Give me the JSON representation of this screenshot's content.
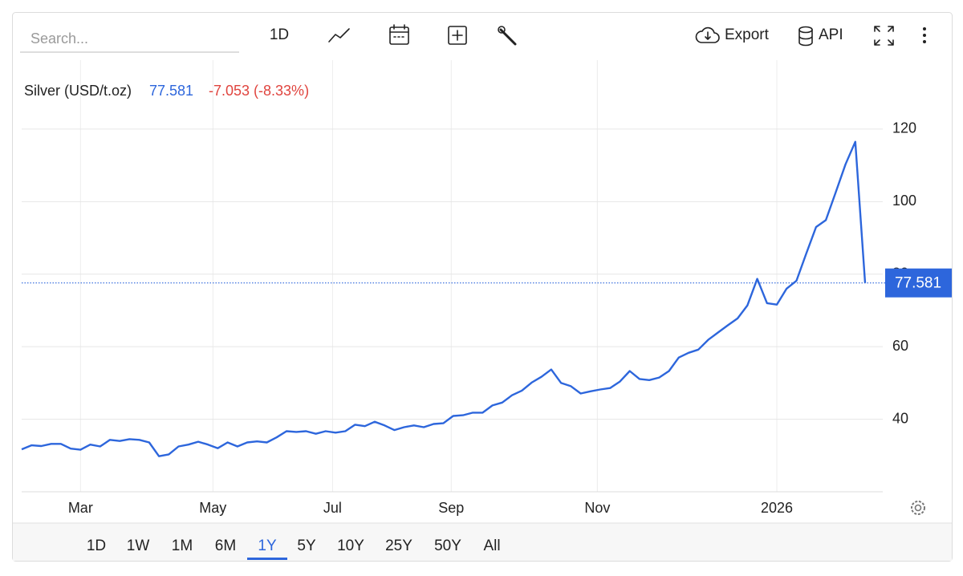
{
  "toolbar": {
    "search_placeholder": "Search...",
    "interval": "1D",
    "export": "Export",
    "api": "API"
  },
  "chart_data": {
    "type": "line",
    "series": [
      {
        "name": "Silver (USD/t.oz)",
        "color": "#2d66dc",
        "values": [
          31.7,
          32.8,
          32.6,
          33.2,
          33.2,
          31.9,
          31.6,
          33.0,
          32.5,
          34.3,
          34.0,
          34.5,
          34.3,
          33.6,
          29.8,
          30.3,
          32.5,
          33.0,
          33.8,
          33.0,
          32.0,
          33.6,
          32.5,
          33.6,
          33.9,
          33.6,
          35.0,
          36.7,
          36.5,
          36.7,
          36.0,
          36.7,
          36.3,
          36.7,
          38.5,
          38.1,
          39.3,
          38.3,
          37.0,
          37.8,
          38.3,
          37.8,
          38.7,
          38.9,
          40.9,
          41.1,
          41.8,
          41.8,
          43.8,
          44.6,
          46.6,
          47.9,
          50.1,
          51.7,
          53.7,
          50.0,
          49.1,
          47.1,
          47.7,
          48.2,
          48.6,
          50.4,
          53.3,
          51.1,
          50.8,
          51.5,
          53.3,
          57.0,
          58.3,
          59.2,
          61.9,
          63.9,
          65.9,
          67.8,
          71.4,
          78.7,
          72.0,
          71.6,
          76.0,
          78.2,
          85.7,
          93.0,
          94.9,
          102.5,
          110.3,
          116.5,
          77.581
        ]
      }
    ],
    "change": "-7.053 (-8.33%)",
    "change_color": "#e0443e",
    "xlim": [
      0,
      87.8
    ],
    "xticks": [
      {
        "value": 6,
        "label": "Mar"
      },
      {
        "value": 19.5,
        "label": "May"
      },
      {
        "value": 31.7,
        "label": "Jul"
      },
      {
        "value": 43.8,
        "label": "Sep"
      },
      {
        "value": 58.7,
        "label": "Nov"
      },
      {
        "value": 77,
        "label": "2026"
      }
    ],
    "ylim": [
      20,
      139
    ],
    "yticks": [
      40,
      60,
      80,
      100,
      120
    ],
    "grid": true
  },
  "range_buttons": [
    "1D",
    "1W",
    "1M",
    "6M",
    "1Y",
    "5Y",
    "10Y",
    "25Y",
    "50Y",
    "All"
  ],
  "active_range": "1Y"
}
